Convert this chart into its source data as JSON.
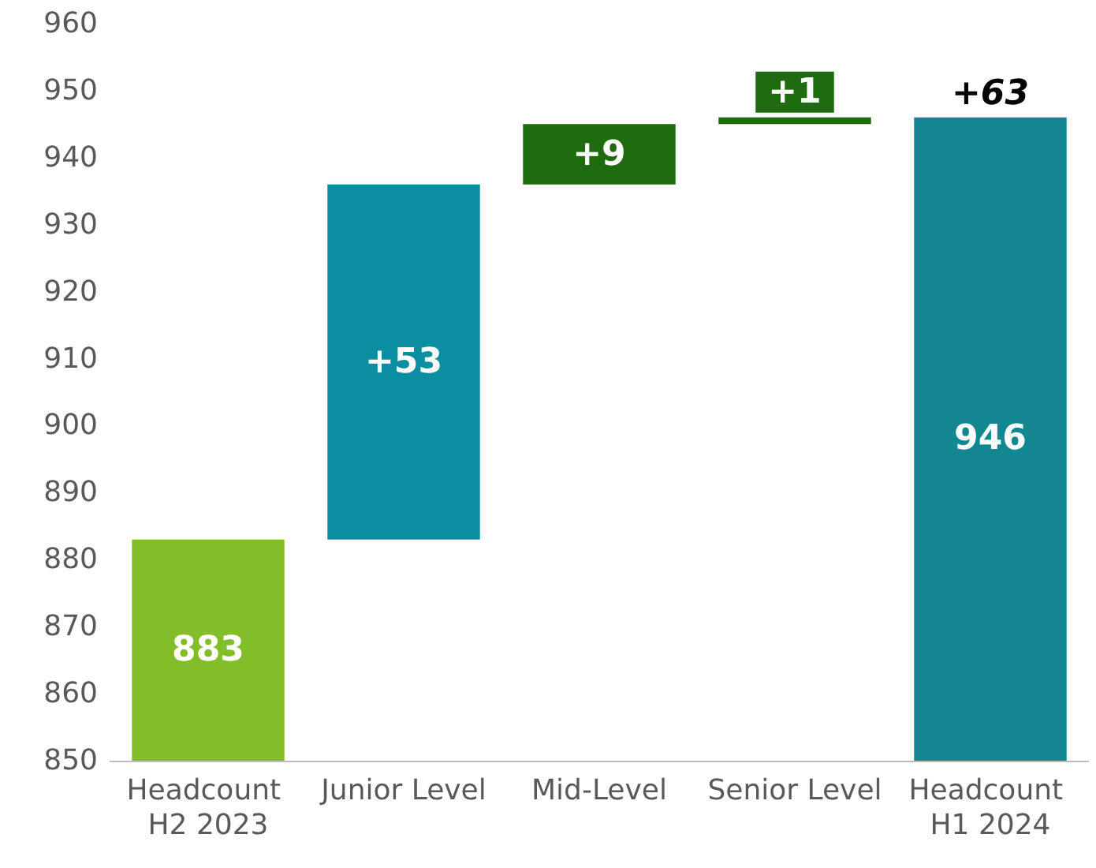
{
  "chart_data": {
    "type": "bar",
    "categories": [
      "Headcount H2 2023",
      "Junior Level",
      "Mid-Level",
      "Senior Level",
      "Headcount H1 2024"
    ],
    "values": [
      883,
      53,
      9,
      1,
      946
    ],
    "base": [
      null,
      883,
      936,
      945,
      null
    ],
    "colors": [
      "#84bd2a",
      "#0a8ea0",
      "#1e6b10",
      "#1e6b10",
      "#128792"
    ],
    "value_labels": [
      "883",
      "+53",
      "+9",
      "+1",
      "946"
    ],
    "annotations": [
      {
        "text": "+63",
        "x": "Headcount H1 2024",
        "y": 946
      }
    ],
    "ylim": [
      850,
      960
    ],
    "yticks": [
      850,
      860,
      870,
      880,
      890,
      900,
      910,
      920,
      930,
      940,
      950,
      960
    ]
  }
}
